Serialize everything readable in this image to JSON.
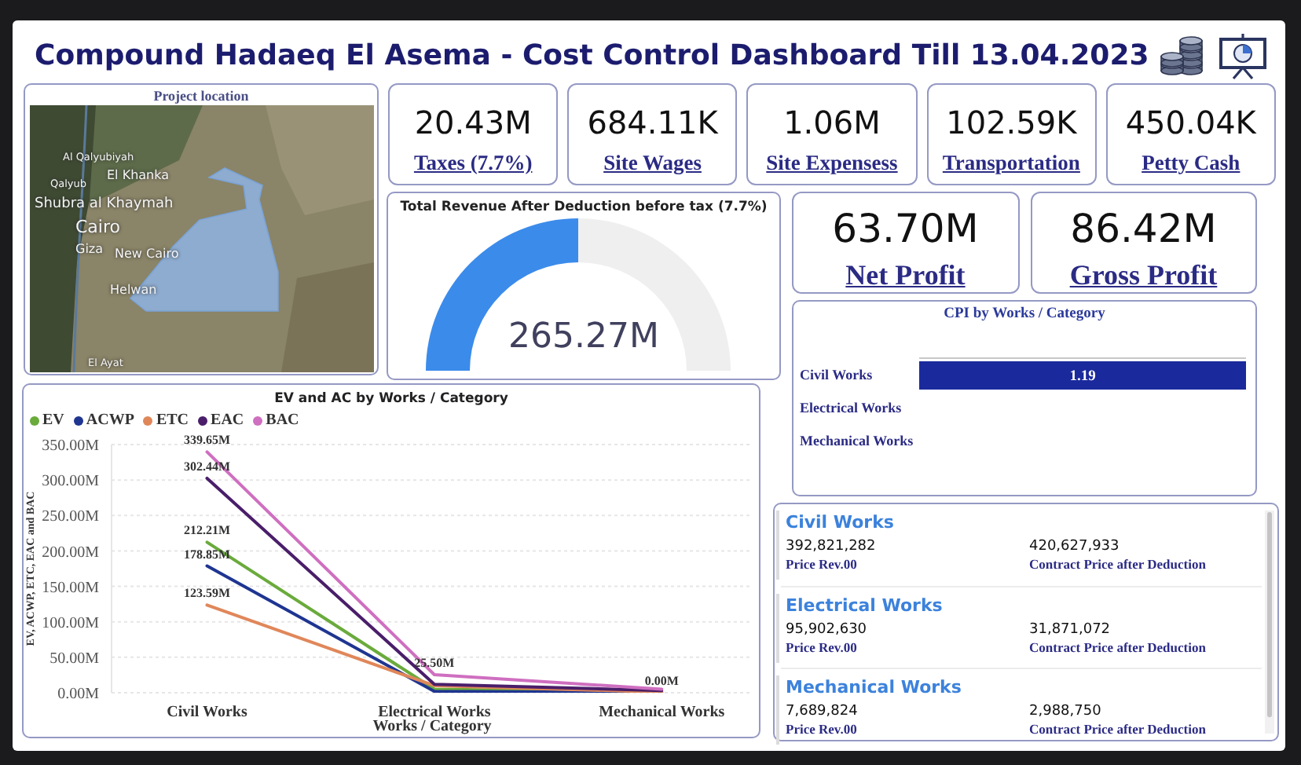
{
  "chart_data": [
    {
      "type": "other",
      "title": "Compound Hadaeq El Asema - Cost Control Dashboard Till 13.04.2023"
    },
    {
      "type": "other",
      "title": "Project location",
      "annotations": [
        "Al Qalyubiyah",
        "El Khanka",
        "Qalyub",
        "Shubra al Khaymah",
        "Cairo",
        "Giza",
        "New Cairo",
        "Helwan",
        "El Ayat"
      ]
    },
    {
      "type": "other",
      "categories": [
        "Taxes (7.7%)",
        "Site Wages",
        "Site Expensess",
        "Transportation",
        "Petty Cash"
      ],
      "value_labels": [
        "20.43M",
        "684.11K",
        "1.06M",
        "102.59K",
        "450.04K"
      ]
    },
    {
      "type": "donut",
      "title": "Total Revenue After Deduction before tax (7.7%)",
      "categories": [
        null,
        null
      ],
      "values": [
        50,
        50
      ],
      "colors": [
        "#3b8beb",
        "#efefef"
      ],
      "annotations": [
        "265.27M"
      ]
    },
    {
      "type": "other",
      "categories": [
        "Net Profit",
        "Gross Profit"
      ],
      "value_labels": [
        "63.70M",
        "86.42M"
      ]
    },
    {
      "type": "bar",
      "orientation": "horizontal",
      "title": "CPI by Works / Category",
      "categories": [
        "Civil Works",
        "Electrical Works",
        "Mechanical Works"
      ],
      "values": [
        1.19,
        null,
        null
      ],
      "color": "#1a2a9c",
      "data_labels": true
    },
    {
      "type": "line",
      "title": "EV and AC by Works / Category",
      "categories": [
        "Civil Works",
        "Electrical Works",
        "Mechanical Works"
      ],
      "xlabel": "Works / Category",
      "ylabel": "EV, ACWP, ETC, EAC and BAC",
      "ylim": [
        0,
        350
      ],
      "yticks": [
        {
          "value": 0,
          "label": "0.00M"
        },
        {
          "value": 50,
          "label": "50.00M"
        },
        {
          "value": 100,
          "label": "100.00M"
        },
        {
          "value": 150,
          "label": "150.00M"
        },
        {
          "value": 200,
          "label": "200.00M"
        },
        {
          "value": 250,
          "label": "250.00M"
        },
        {
          "value": 300,
          "label": "300.00M"
        },
        {
          "value": 350,
          "label": "350.00M"
        }
      ],
      "grid": "y",
      "legend": "top left",
      "series": [
        {
          "name": "EV",
          "color": "#6aab3c",
          "values": [
            212.21,
            5,
            1
          ],
          "value_labels": [
            "212.21M",
            null,
            null
          ]
        },
        {
          "name": "ACWP",
          "color": "#1f3591",
          "values": [
            178.85,
            2,
            0
          ],
          "value_labels": [
            "178.85M",
            null,
            "0.00M"
          ]
        },
        {
          "name": "ETC",
          "color": "#e0875a",
          "values": [
            123.59,
            10,
            1
          ],
          "value_labels": [
            "123.59M",
            null,
            null
          ]
        },
        {
          "name": "EAC",
          "color": "#4a1e6a",
          "values": [
            302.44,
            12,
            3
          ],
          "value_labels": [
            "302.44M",
            null,
            null
          ]
        },
        {
          "name": "BAC",
          "color": "#cf6fc0",
          "values": [
            339.65,
            25.5,
            5
          ],
          "value_labels": [
            "339.65M",
            "25.50M",
            null
          ]
        }
      ]
    },
    {
      "type": "other",
      "categories": [
        "Civil Works",
        "Electrical Works",
        "Mechanical Works"
      ],
      "series": [
        {
          "name": "Price Rev.00",
          "values": [
            392821282,
            95902630,
            7689824
          ],
          "value_labels": [
            "392,821,282",
            "95,902,630",
            "7,689,824"
          ]
        },
        {
          "name": "Contract Price after Deduction",
          "values": [
            420627933,
            31871072,
            2988750
          ],
          "value_labels": [
            "420,627,933",
            "31,871,072",
            "2,988,750"
          ]
        }
      ]
    }
  ]
}
